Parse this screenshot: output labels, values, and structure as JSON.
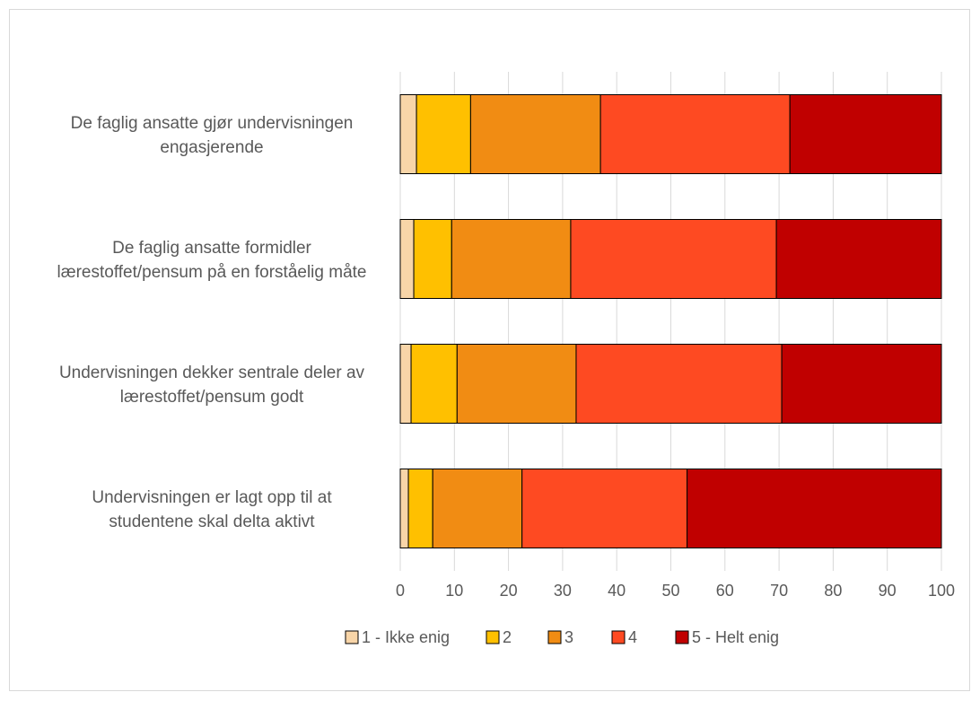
{
  "chart_data": {
    "type": "bar",
    "orientation": "horizontal",
    "stacked": true,
    "categories": [
      [
        "De faglig ansatte gjør undervisningen",
        "engasjerende"
      ],
      [
        "De faglig ansatte formidler",
        "lærestoffet/pensum på en forståelig måte"
      ],
      [
        "Undervisningen dekker sentrale deler av",
        "lærestoffet/pensum godt"
      ],
      [
        "Undervisningen er lagt opp til at",
        "studentene skal delta aktivt"
      ]
    ],
    "series": [
      {
        "name": "1 - Ikke enig",
        "color": "#f8d5a8",
        "values": [
          3,
          2.5,
          2,
          1.5
        ]
      },
      {
        "name": "2",
        "color": "#ffc000",
        "values": [
          10,
          7,
          8.5,
          4.5
        ]
      },
      {
        "name": "3",
        "color": "#f18c13",
        "values": [
          24,
          22,
          22,
          16.5
        ]
      },
      {
        "name": "4",
        "color": "#fe4a22",
        "values": [
          35,
          38,
          38,
          30.5
        ]
      },
      {
        "name": "5 - Helt enig",
        "color": "#c00000",
        "values": [
          28,
          30.5,
          29.5,
          47
        ]
      }
    ],
    "xlim": [
      0,
      100
    ],
    "xticks": [
      0,
      10,
      20,
      30,
      40,
      50,
      60,
      70,
      80,
      90,
      100
    ],
    "grid": true,
    "legend_position": "bottom"
  }
}
